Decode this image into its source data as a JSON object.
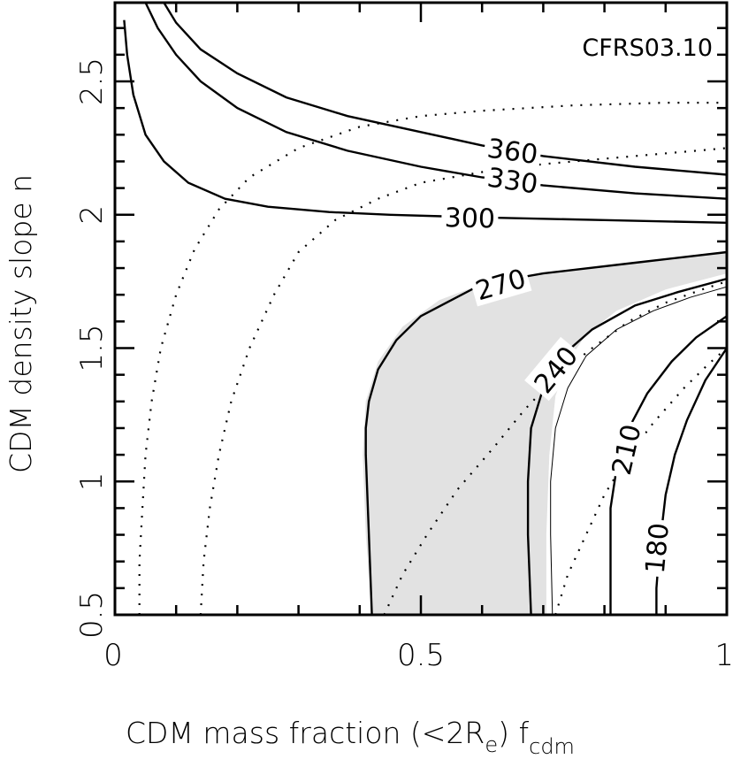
{
  "chart_data": {
    "type": "contour",
    "title": "",
    "annotation": "CFRS03.10",
    "xlabel_main": "CDM mass fraction (<2R",
    "xlabel_sub_e": "e",
    "xlabel_mid": ") f",
    "xlabel_sub_cdm": "cdm",
    "ylabel": "CDM density slope n",
    "xlim": [
      0,
      1
    ],
    "ylim": [
      0.5,
      2.8
    ],
    "x_ticks": [
      {
        "value": 0,
        "label": "0"
      },
      {
        "value": 0.5,
        "label": "0.5"
      },
      {
        "value": 1,
        "label": "1"
      }
    ],
    "y_ticks": [
      {
        "value": 0.5,
        "label": "0.5"
      },
      {
        "value": 1,
        "label": "1"
      },
      {
        "value": 1.5,
        "label": "1.5"
      },
      {
        "value": 2,
        "label": "2"
      },
      {
        "value": 2.5,
        "label": "2.5"
      }
    ],
    "colors": {
      "shade": "#e2e2e2",
      "line": "#000000",
      "background": "#ffffff"
    },
    "shaded_region": {
      "description": "between 270 contour and thin boundary",
      "outer": [
        [
          0.42,
          0.5
        ],
        [
          0.41,
          0.8
        ],
        [
          0.405,
          1.1
        ],
        [
          0.41,
          1.3
        ],
        [
          0.43,
          1.45
        ],
        [
          0.47,
          1.58
        ],
        [
          0.53,
          1.68
        ],
        [
          0.6,
          1.74
        ],
        [
          0.7,
          1.78
        ],
        [
          0.85,
          1.82
        ],
        [
          1.0,
          1.86
        ]
      ],
      "inner": [
        [
          1.0,
          1.78
        ],
        [
          0.9,
          1.72
        ],
        [
          0.82,
          1.64
        ],
        [
          0.77,
          1.55
        ],
        [
          0.74,
          1.45
        ],
        [
          0.72,
          1.32
        ],
        [
          0.71,
          1.1
        ],
        [
          0.705,
          0.8
        ],
        [
          0.705,
          0.5
        ]
      ]
    },
    "contours": [
      {
        "level": "360",
        "points": [
          [
            0.08,
            2.81
          ],
          [
            0.1,
            2.72
          ],
          [
            0.14,
            2.62
          ],
          [
            0.2,
            2.53
          ],
          [
            0.28,
            2.44
          ],
          [
            0.38,
            2.37
          ],
          [
            0.5,
            2.31
          ],
          [
            0.6,
            2.26
          ],
          [
            0.7,
            2.22
          ],
          [
            0.85,
            2.18
          ],
          [
            1.0,
            2.15
          ]
        ],
        "label_at": [
          0.65,
          2.24
        ]
      },
      {
        "level": "330",
        "points": [
          [
            0.05,
            2.81
          ],
          [
            0.07,
            2.7
          ],
          [
            0.1,
            2.6
          ],
          [
            0.14,
            2.5
          ],
          [
            0.2,
            2.4
          ],
          [
            0.28,
            2.31
          ],
          [
            0.38,
            2.24
          ],
          [
            0.5,
            2.18
          ],
          [
            0.6,
            2.14
          ],
          [
            0.7,
            2.11
          ],
          [
            0.85,
            2.08
          ],
          [
            1.0,
            2.06
          ]
        ],
        "label_at": [
          0.65,
          2.13
        ]
      },
      {
        "level": "300",
        "points": [
          [
            0.015,
            2.73
          ],
          [
            0.02,
            2.6
          ],
          [
            0.03,
            2.45
          ],
          [
            0.05,
            2.3
          ],
          [
            0.08,
            2.2
          ],
          [
            0.12,
            2.12
          ],
          [
            0.18,
            2.06
          ],
          [
            0.25,
            2.03
          ],
          [
            0.35,
            2.01
          ],
          [
            0.45,
            2.0
          ],
          [
            0.6,
            1.99
          ],
          [
            0.8,
            1.98
          ],
          [
            1.0,
            1.97
          ]
        ],
        "label_at": [
          0.58,
          1.99
        ]
      },
      {
        "level": "270",
        "points": [
          [
            0.42,
            0.5
          ],
          [
            0.415,
            0.8
          ],
          [
            0.41,
            1.1
          ],
          [
            0.41,
            1.2
          ],
          [
            0.415,
            1.3
          ],
          [
            0.43,
            1.42
          ],
          [
            0.46,
            1.53
          ],
          [
            0.5,
            1.62
          ],
          [
            0.55,
            1.68
          ],
          [
            0.6,
            1.74
          ],
          [
            0.7,
            1.78
          ],
          [
            0.85,
            1.82
          ],
          [
            1.0,
            1.86
          ]
        ],
        "label_at": [
          0.63,
          1.74
        ]
      },
      {
        "level": "240",
        "points": [
          [
            0.68,
            0.5
          ],
          [
            0.675,
            0.8
          ],
          [
            0.675,
            1.0
          ],
          [
            0.68,
            1.2
          ],
          [
            0.7,
            1.35
          ],
          [
            0.73,
            1.47
          ],
          [
            0.78,
            1.57
          ],
          [
            0.85,
            1.66
          ],
          [
            0.92,
            1.71
          ],
          [
            1.0,
            1.76
          ]
        ],
        "label_at": [
          0.72,
          1.42
        ]
      },
      {
        "level": "210",
        "points": [
          [
            0.81,
            0.5
          ],
          [
            0.81,
            0.7
          ],
          [
            0.81,
            0.9
          ],
          [
            0.82,
            1.05
          ],
          [
            0.84,
            1.2
          ],
          [
            0.87,
            1.33
          ],
          [
            0.91,
            1.45
          ],
          [
            0.95,
            1.54
          ],
          [
            1.0,
            1.62
          ]
        ],
        "label_at": [
          0.835,
          1.12
        ]
      },
      {
        "level": "180",
        "points": [
          [
            0.885,
            0.5
          ],
          [
            0.885,
            0.6
          ],
          [
            0.89,
            0.75
          ],
          [
            0.895,
            0.85
          ],
          [
            0.9,
            0.95
          ],
          [
            0.915,
            1.1
          ],
          [
            0.935,
            1.23
          ],
          [
            0.965,
            1.38
          ],
          [
            1.0,
            1.5
          ]
        ],
        "label_at": [
          0.885,
          0.75
        ]
      }
    ],
    "thin_boundary": [
      [
        0.715,
        0.5
      ],
      [
        0.712,
        0.8
      ],
      [
        0.712,
        1.0
      ],
      [
        0.72,
        1.2
      ],
      [
        0.74,
        1.35
      ],
      [
        0.77,
        1.47
      ],
      [
        0.82,
        1.57
      ],
      [
        0.88,
        1.64
      ],
      [
        0.94,
        1.69
      ],
      [
        1.0,
        1.73
      ]
    ],
    "dotted_curves": [
      [
        [
          0.04,
          0.5
        ],
        [
          0.04,
          0.7
        ],
        [
          0.045,
          0.9
        ],
        [
          0.05,
          1.1
        ],
        [
          0.06,
          1.3
        ],
        [
          0.075,
          1.5
        ],
        [
          0.1,
          1.7
        ],
        [
          0.13,
          1.87
        ],
        [
          0.17,
          2.02
        ],
        [
          0.22,
          2.14
        ],
        [
          0.3,
          2.25
        ],
        [
          0.4,
          2.33
        ],
        [
          0.5,
          2.37
        ],
        [
          0.6,
          2.39
        ],
        [
          0.75,
          2.41
        ],
        [
          0.9,
          2.42
        ],
        [
          1.0,
          2.42
        ]
      ],
      [
        [
          0.14,
          0.5
        ],
        [
          0.145,
          0.7
        ],
        [
          0.155,
          0.9
        ],
        [
          0.17,
          1.1
        ],
        [
          0.19,
          1.3
        ],
        [
          0.22,
          1.5
        ],
        [
          0.26,
          1.7
        ],
        [
          0.3,
          1.86
        ],
        [
          0.36,
          1.98
        ],
        [
          0.43,
          2.06
        ],
        [
          0.5,
          2.12
        ],
        [
          0.6,
          2.16
        ],
        [
          0.7,
          2.19
        ],
        [
          0.85,
          2.22
        ],
        [
          1.0,
          2.25
        ]
      ],
      [
        [
          0.44,
          0.5
        ],
        [
          0.47,
          0.65
        ],
        [
          0.51,
          0.8
        ],
        [
          0.56,
          0.97
        ],
        [
          0.62,
          1.13
        ],
        [
          0.67,
          1.27
        ],
        [
          0.72,
          1.39
        ],
        [
          0.78,
          1.5
        ],
        [
          0.84,
          1.6
        ],
        [
          0.9,
          1.67
        ],
        [
          0.96,
          1.72
        ],
        [
          1.0,
          1.75
        ]
      ],
      [
        [
          0.72,
          0.5
        ],
        [
          0.74,
          0.65
        ],
        [
          0.77,
          0.8
        ],
        [
          0.8,
          0.95
        ],
        [
          0.84,
          1.1
        ],
        [
          0.88,
          1.22
        ],
        [
          0.93,
          1.35
        ],
        [
          0.97,
          1.44
        ],
        [
          1.0,
          1.5
        ]
      ]
    ]
  }
}
